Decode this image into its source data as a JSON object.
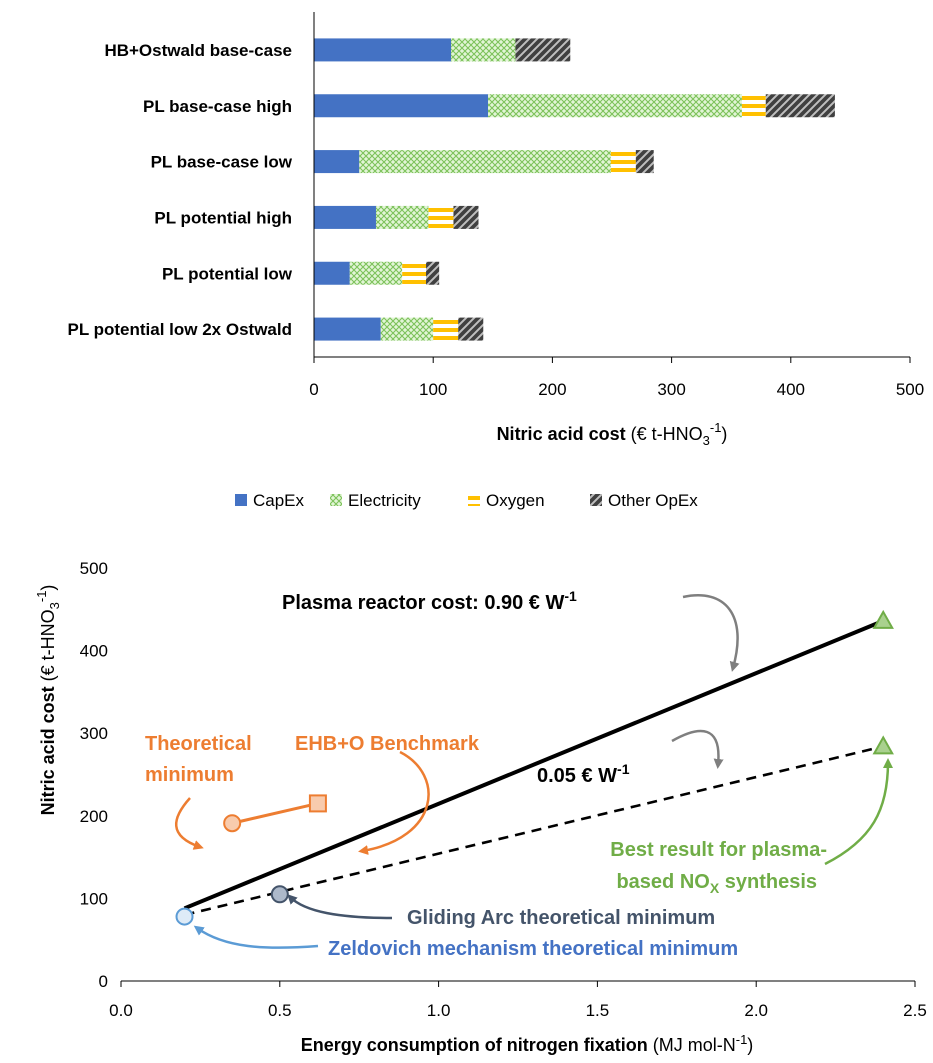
{
  "colors": {
    "capex": "#4472C4",
    "electricity": "#9BD37C",
    "oxygen": "#FFC000",
    "other": "#404040",
    "orange": "#ED7D31",
    "green": "#70AD47",
    "navy": "#44546A",
    "lightblue": "#5B9BD5",
    "grey_arrow": "#7F7F7F"
  },
  "chart_data": [
    {
      "type": "bar",
      "orientation": "horizontal",
      "stacked": true,
      "categories": [
        "HB+Ostwald base-case",
        "PL base-case high",
        "PL base-case low",
        "PL potential high",
        "PL potential low",
        "PL potential low 2x Ostwald"
      ],
      "series": [
        {
          "name": "CapEx",
          "values": [
            115,
            146,
            38,
            52,
            30,
            56
          ]
        },
        {
          "name": "Electricity",
          "values": [
            54,
            213,
            211,
            44,
            44,
            44
          ]
        },
        {
          "name": "Oxygen",
          "values": [
            0,
            20,
            21,
            21,
            20,
            21
          ]
        },
        {
          "name": "Other OpEx",
          "values": [
            46,
            58,
            15,
            21,
            11,
            21
          ]
        }
      ],
      "xlim": [
        0,
        500
      ],
      "xticks": [
        "0",
        "100",
        "200",
        "300",
        "400",
        "500"
      ],
      "xlabel_bold": "Nitric acid cost",
      "xlabel_unit_pre": "(€ t-HNO",
      "xlabel_sub": "3",
      "xlabel_sup": "-1",
      "xlabel_unit_post": ")",
      "legend_position": "bottom"
    },
    {
      "type": "line",
      "series": [
        {
          "name": "Plasma reactor cost: 0.90 € W-1",
          "x": [
            0.2,
            2.4
          ],
          "y": [
            88,
            436
          ]
        },
        {
          "name": "0.05 € W-1",
          "x": [
            0.2,
            2.4
          ],
          "y": [
            80,
            284
          ]
        },
        {
          "name": "Theoretical minimum - EHB+O Benchmark",
          "x": [
            0.35,
            0.62
          ],
          "y": [
            191,
            215
          ]
        }
      ],
      "points": [
        {
          "x": 0.35,
          "y": 191,
          "shape": "circle",
          "color": "orange"
        },
        {
          "x": 0.62,
          "y": 215,
          "shape": "square",
          "color": "orange"
        },
        {
          "x": 0.2,
          "y": 78,
          "shape": "circle",
          "color": "lightblue"
        },
        {
          "x": 0.5,
          "y": 105,
          "shape": "circle",
          "color": "navy"
        },
        {
          "x": 2.4,
          "y": 436,
          "shape": "triangle",
          "color": "green"
        },
        {
          "x": 2.4,
          "y": 284,
          "shape": "triangle",
          "color": "green"
        }
      ],
      "xlim": [
        0.0,
        2.5
      ],
      "ylim": [
        0,
        500
      ],
      "xticks": [
        "0.0",
        "0.5",
        "1.0",
        "1.5",
        "2.0",
        "2.5"
      ],
      "yticks": [
        "0",
        "100",
        "200",
        "300",
        "400",
        "500"
      ],
      "xlabel_bold": "Energy consumption of nitrogen fixation",
      "xlabel_unit_pre": "(MJ mol-N",
      "xlabel_sup": "-1",
      "xlabel_unit_post": ")",
      "ylabel_bold": "Nitric acid cost",
      "ylabel_unit_pre": "(€ t-HNO",
      "ylabel_sub": "3",
      "ylabel_sup": "-1",
      "ylabel_unit_post": ")",
      "annotations": {
        "reactor_090_pre": "Plasma reactor cost: 0.90 € W",
        "reactor_090_sup": "-1",
        "reactor_005_pre": "0.05 € W",
        "reactor_005_sup": "-1",
        "theoretical_line1": "Theoretical",
        "theoretical_line2": "minimum",
        "benchmark": "EHB+O Benchmark",
        "best_line1": "Best result for plasma-",
        "best_line2_pre": "based NO",
        "best_line2_sub": "X",
        "best_line2_post": " synthesis",
        "gliding": "Gliding Arc theoretical minimum",
        "zeldovich": "Zeldovich mechanism theoretical minimum"
      }
    }
  ]
}
